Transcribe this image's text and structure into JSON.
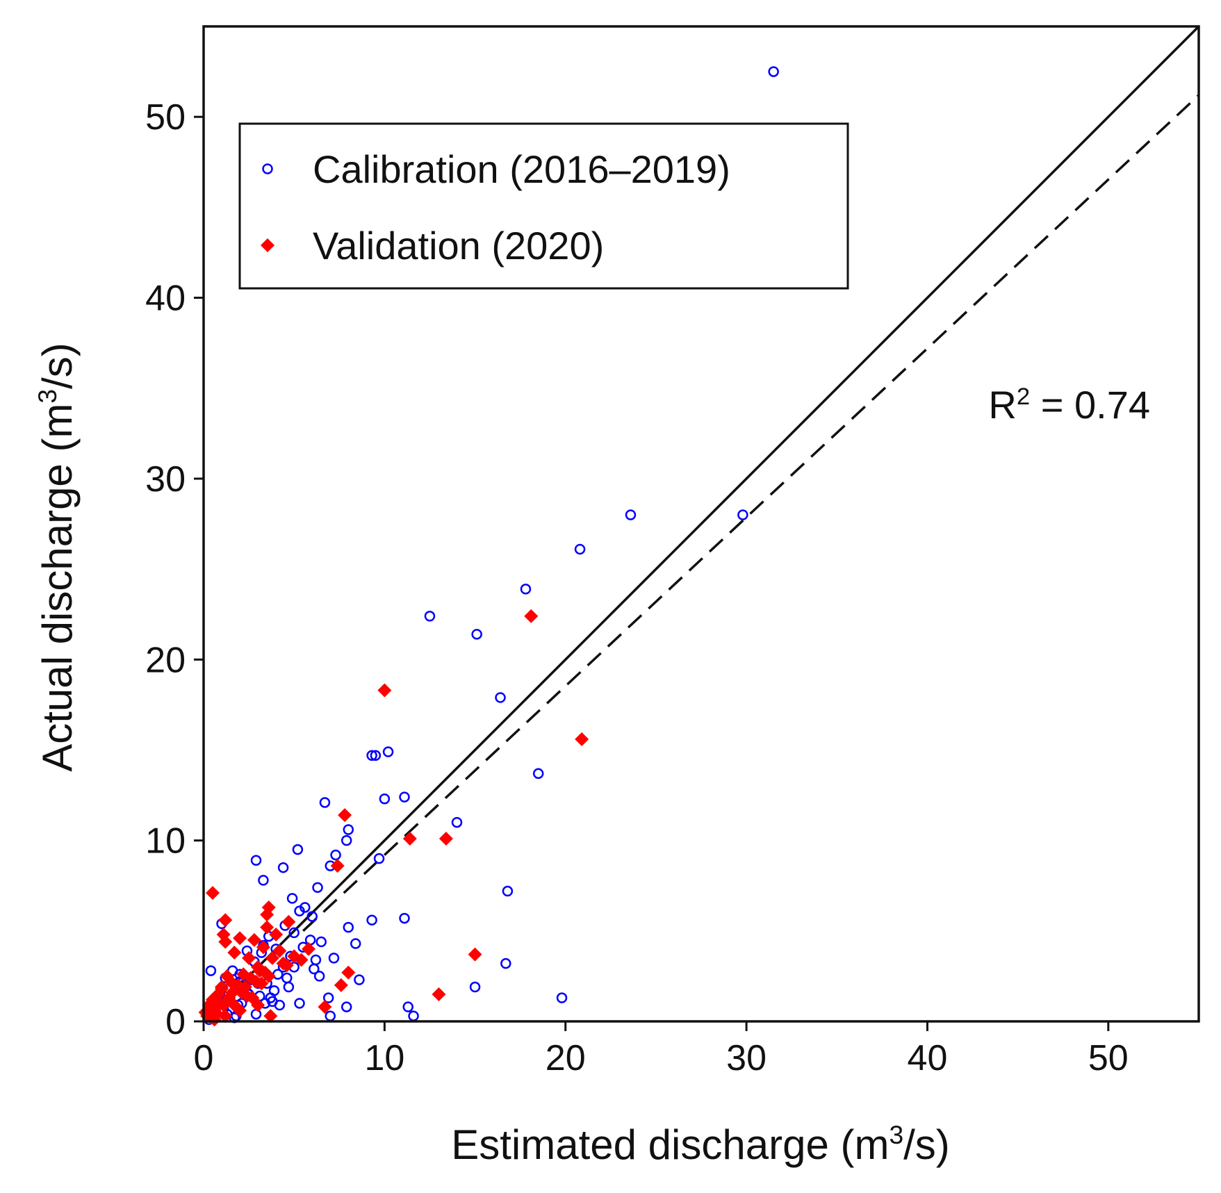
{
  "chart_data": {
    "type": "scatter",
    "xlabel": {
      "prefix": "Estimated discharge (m",
      "sup": "3",
      "suffix": "/s)"
    },
    "ylabel": {
      "prefix": "Actual discharge (m",
      "sup": "3",
      "suffix": "/s)"
    },
    "xlim": [
      0,
      55
    ],
    "ylim": [
      0,
      55
    ],
    "xticks": [
      0,
      10,
      20,
      30,
      40,
      50
    ],
    "yticks": [
      0,
      10,
      20,
      30,
      40,
      50
    ],
    "grid": false,
    "legend_position": "top-left",
    "annotation": {
      "prefix": "R",
      "sup": "2",
      "suffix": " = 0.74"
    },
    "lines": [
      {
        "name": "1:1 line",
        "style": "solid",
        "x": [
          0,
          55
        ],
        "y": [
          0,
          55
        ]
      },
      {
        "name": "regression",
        "style": "dashed",
        "x": [
          5.5,
          55
        ],
        "y": [
          5.0,
          51.2
        ]
      }
    ],
    "series": [
      {
        "name": "Calibration (2016–2019)",
        "marker": "circle-open",
        "color": "#0000ff",
        "x": [
          31.5,
          23.6,
          29.8,
          20.8,
          17.8,
          12.5,
          15.1,
          16.4,
          9.3,
          9.5,
          10.2,
          18.5,
          10.0,
          11.1,
          6.7,
          14.0,
          8.0,
          7.9,
          9.7,
          7.3,
          7.0,
          2.9,
          4.4,
          5.2,
          3.3,
          6.3,
          16.8,
          4.9,
          5.6,
          6.0,
          5.3,
          9.3,
          11.1,
          8.0,
          8.4,
          16.7,
          7.2,
          8.6,
          7.9,
          15.0,
          11.3,
          11.6,
          19.8,
          7.0,
          6.9,
          0.4,
          1.0,
          2.0,
          3.2,
          4.1,
          3.6,
          5.0,
          6.4,
          4.7,
          3.8,
          2.5,
          5.9,
          6.2,
          4.4,
          3.0,
          2.4,
          1.9,
          1.3,
          0.8,
          1.6,
          2.8,
          3.4,
          4.2,
          5.3,
          6.1,
          2.2,
          3.9,
          4.6,
          5.0,
          1.1,
          1.7,
          2.6,
          3.1,
          0.6,
          1.4,
          2.0,
          4.0,
          4.8,
          5.5,
          0.9,
          1.8,
          2.9,
          3.5,
          3.7,
          2.1,
          1.2,
          0.5,
          0.3,
          2.4,
          3.3,
          4.5,
          6.5
        ],
        "y": [
          52.5,
          28.0,
          28.0,
          26.1,
          23.9,
          22.4,
          21.4,
          17.9,
          14.7,
          14.7,
          14.9,
          13.7,
          12.3,
          12.4,
          12.1,
          11.0,
          10.6,
          10.0,
          9.0,
          9.2,
          8.6,
          8.9,
          8.5,
          9.5,
          7.8,
          7.4,
          7.2,
          6.8,
          6.3,
          5.8,
          6.1,
          5.6,
          5.7,
          5.2,
          4.3,
          3.2,
          3.5,
          2.3,
          0.8,
          1.9,
          0.8,
          0.3,
          1.3,
          0.3,
          1.3,
          2.8,
          5.4,
          2.2,
          3.8,
          2.6,
          4.7,
          4.9,
          2.5,
          1.9,
          1.1,
          1.5,
          4.5,
          3.4,
          3.0,
          2.1,
          1.6,
          0.9,
          0.4,
          1.2,
          2.8,
          3.3,
          1.0,
          0.9,
          1.0,
          2.9,
          2.0,
          1.7,
          2.4,
          3.0,
          0.7,
          0.2,
          2.3,
          1.4,
          0.5,
          1.8,
          2.6,
          4.0,
          3.6,
          4.1,
          1.5,
          0.3,
          0.4,
          2.1,
          1.3,
          1.0,
          2.4,
          1.0,
          0.1,
          3.9,
          4.2,
          5.3,
          4.4
        ]
      },
      {
        "name": "Validation (2020)",
        "marker": "diamond-filled",
        "color": "#ff0000",
        "x": [
          18.1,
          10.0,
          20.9,
          7.8,
          11.4,
          13.4,
          7.4,
          0.5,
          15.0,
          13.0,
          7.6,
          8.0,
          6.7,
          1.2,
          1.2,
          1.1,
          4.7,
          3.6,
          3.5,
          2.0,
          1.7,
          2.8,
          3.3,
          4.0,
          4.4,
          5.8,
          2.5,
          3.0,
          2.2,
          1.5,
          1.0,
          0.8,
          0.5,
          0.3,
          0.6,
          1.4,
          1.9,
          2.6,
          3.1,
          3.8,
          4.2,
          5.0,
          5.4,
          1.3,
          0.9,
          0.2,
          0.4,
          1.6,
          2.3,
          2.9,
          3.4,
          0.7,
          1.8,
          2.7,
          3.6,
          4.6,
          1.1,
          2.1,
          3.2,
          0.1,
          0.4,
          1.0,
          1.5,
          2.4,
          3.0,
          3.7,
          2.0,
          1.2,
          0.6,
          3.5
        ],
        "y": [
          22.4,
          18.3,
          15.6,
          11.4,
          10.1,
          10.1,
          8.6,
          7.1,
          3.7,
          1.5,
          2.0,
          2.7,
          0.8,
          5.6,
          4.4,
          4.8,
          5.5,
          6.3,
          5.9,
          4.6,
          3.8,
          4.5,
          4.1,
          4.8,
          3.2,
          4.0,
          3.5,
          3.0,
          2.6,
          2.2,
          1.8,
          1.5,
          1.2,
          0.9,
          0.6,
          1.3,
          2.0,
          2.4,
          2.8,
          3.5,
          3.9,
          3.6,
          3.4,
          2.5,
          1.0,
          0.3,
          0.2,
          1.6,
          1.9,
          2.2,
          2.7,
          0.4,
          0.8,
          1.3,
          2.5,
          3.1,
          0.9,
          1.6,
          2.1,
          0.5,
          0.7,
          1.9,
          1.1,
          1.4,
          0.9,
          0.3,
          0.6,
          0.3,
          0.1,
          5.2
        ]
      }
    ]
  }
}
